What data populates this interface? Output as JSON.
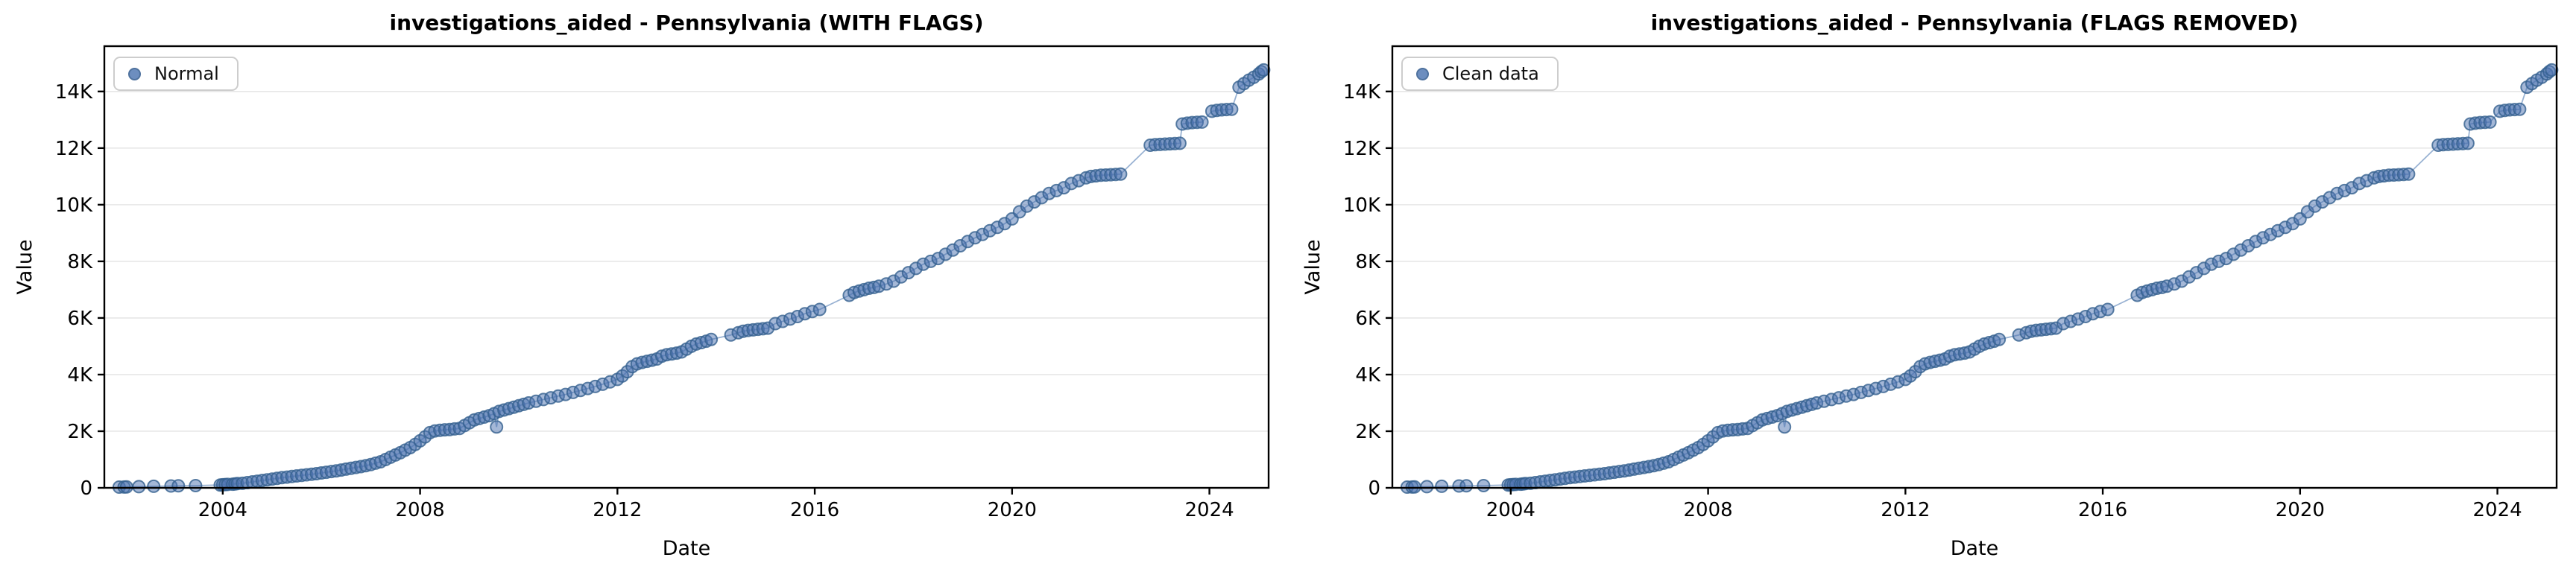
{
  "figure": {
    "background": "#ffffff"
  },
  "colors": {
    "marker_fill": "#4C72B0",
    "marker_edge": "#35608F",
    "connector_line": "#8FABCE",
    "grid": "#E7E7E7",
    "spine": "#000000",
    "text": "#000000"
  },
  "chart_data": [
    {
      "type": "scatter",
      "title": "investigations_aided - Pennsylvania (WITH FLAGS)",
      "xlabel": "Date",
      "ylabel": "Value",
      "legend": {
        "position": "upper left",
        "entries": [
          "Normal"
        ]
      },
      "xlim": [
        2001.6,
        2025.2
      ],
      "ylim": [
        0,
        15600
      ],
      "grid": "horizontal",
      "x_ticks": [
        {
          "v": 2004,
          "label": "2004"
        },
        {
          "v": 2008,
          "label": "2008"
        },
        {
          "v": 2012,
          "label": "2012"
        },
        {
          "v": 2016,
          "label": "2016"
        },
        {
          "v": 2020,
          "label": "2020"
        },
        {
          "v": 2024,
          "label": "2024"
        }
      ],
      "y_ticks": [
        {
          "v": 0,
          "label": "0"
        },
        {
          "v": 2000,
          "label": "2K"
        },
        {
          "v": 4000,
          "label": "4K"
        },
        {
          "v": 6000,
          "label": "6K"
        },
        {
          "v": 8000,
          "label": "8K"
        },
        {
          "v": 10000,
          "label": "10K"
        },
        {
          "v": 12000,
          "label": "12K"
        },
        {
          "v": 14000,
          "label": "14K"
        }
      ],
      "series": [
        {
          "name": "Normal",
          "points_key": "series_points"
        }
      ]
    },
    {
      "type": "scatter",
      "title": "investigations_aided - Pennsylvania (FLAGS REMOVED)",
      "xlabel": "Date",
      "ylabel": "Value",
      "legend": {
        "position": "upper left",
        "entries": [
          "Clean data"
        ]
      },
      "xlim": [
        2001.6,
        2025.2
      ],
      "ylim": [
        0,
        15600
      ],
      "grid": "horizontal",
      "x_ticks": [
        {
          "v": 2004,
          "label": "2004"
        },
        {
          "v": 2008,
          "label": "2008"
        },
        {
          "v": 2012,
          "label": "2012"
        },
        {
          "v": 2016,
          "label": "2016"
        },
        {
          "v": 2020,
          "label": "2020"
        },
        {
          "v": 2024,
          "label": "2024"
        }
      ],
      "y_ticks": [
        {
          "v": 0,
          "label": "0"
        },
        {
          "v": 2000,
          "label": "2K"
        },
        {
          "v": 4000,
          "label": "4K"
        },
        {
          "v": 6000,
          "label": "6K"
        },
        {
          "v": 8000,
          "label": "8K"
        },
        {
          "v": 10000,
          "label": "10K"
        },
        {
          "v": 12000,
          "label": "12K"
        },
        {
          "v": 14000,
          "label": "14K"
        }
      ],
      "series": [
        {
          "name": "Clean data",
          "points_key": "series_points"
        }
      ]
    }
  ],
  "series_points": [
    [
      2001.9,
      25
    ],
    [
      2002.0,
      30
    ],
    [
      2002.05,
      35
    ],
    [
      2002.3,
      42
    ],
    [
      2002.6,
      55
    ],
    [
      2002.95,
      65
    ],
    [
      2003.1,
      72
    ],
    [
      2003.45,
      80
    ],
    [
      2003.95,
      100
    ],
    [
      2004.0,
      108
    ],
    [
      2004.05,
      115
    ],
    [
      2004.1,
      122
    ],
    [
      2004.2,
      130
    ],
    [
      2004.25,
      140
    ],
    [
      2004.3,
      150
    ],
    [
      2004.4,
      160
    ],
    [
      2004.5,
      185
    ],
    [
      2004.6,
      210
    ],
    [
      2004.7,
      235
    ],
    [
      2004.8,
      260
    ],
    [
      2004.9,
      285
    ],
    [
      2005.0,
      310
    ],
    [
      2005.1,
      335
    ],
    [
      2005.2,
      360
    ],
    [
      2005.3,
      380
    ],
    [
      2005.4,
      400
    ],
    [
      2005.5,
      420
    ],
    [
      2005.6,
      440
    ],
    [
      2005.7,
      460
    ],
    [
      2005.8,
      480
    ],
    [
      2005.9,
      500
    ],
    [
      2006.0,
      525
    ],
    [
      2006.1,
      550
    ],
    [
      2006.2,
      575
    ],
    [
      2006.3,
      600
    ],
    [
      2006.4,
      630
    ],
    [
      2006.5,
      660
    ],
    [
      2006.6,
      690
    ],
    [
      2006.7,
      720
    ],
    [
      2006.8,
      750
    ],
    [
      2006.9,
      785
    ],
    [
      2007.0,
      820
    ],
    [
      2007.1,
      870
    ],
    [
      2007.2,
      920
    ],
    [
      2007.3,
      1000
    ],
    [
      2007.4,
      1080
    ],
    [
      2007.5,
      1160
    ],
    [
      2007.6,
      1240
    ],
    [
      2007.7,
      1330
    ],
    [
      2007.8,
      1420
    ],
    [
      2007.9,
      1530
    ],
    [
      2008.0,
      1660
    ],
    [
      2008.1,
      1800
    ],
    [
      2008.2,
      1950
    ],
    [
      2008.3,
      2010
    ],
    [
      2008.4,
      2030
    ],
    [
      2008.5,
      2050
    ],
    [
      2008.6,
      2060
    ],
    [
      2008.7,
      2080
    ],
    [
      2008.8,
      2100
    ],
    [
      2008.9,
      2200
    ],
    [
      2009.0,
      2300
    ],
    [
      2009.1,
      2400
    ],
    [
      2009.2,
      2450
    ],
    [
      2009.3,
      2500
    ],
    [
      2009.4,
      2550
    ],
    [
      2009.5,
      2620
    ],
    [
      2009.55,
      2150
    ],
    [
      2009.6,
      2700
    ],
    [
      2009.7,
      2750
    ],
    [
      2009.8,
      2800
    ],
    [
      2009.9,
      2850
    ],
    [
      2010.0,
      2900
    ],
    [
      2010.1,
      2950
    ],
    [
      2010.2,
      3000
    ],
    [
      2010.35,
      3060
    ],
    [
      2010.5,
      3120
    ],
    [
      2010.65,
      3180
    ],
    [
      2010.8,
      3240
    ],
    [
      2010.95,
      3300
    ],
    [
      2011.1,
      3370
    ],
    [
      2011.25,
      3440
    ],
    [
      2011.4,
      3510
    ],
    [
      2011.55,
      3580
    ],
    [
      2011.7,
      3660
    ],
    [
      2011.85,
      3740
    ],
    [
      2012.0,
      3830
    ],
    [
      2012.1,
      3950
    ],
    [
      2012.2,
      4100
    ],
    [
      2012.3,
      4280
    ],
    [
      2012.4,
      4380
    ],
    [
      2012.5,
      4430
    ],
    [
      2012.6,
      4470
    ],
    [
      2012.7,
      4510
    ],
    [
      2012.8,
      4550
    ],
    [
      2012.9,
      4650
    ],
    [
      2013.0,
      4700
    ],
    [
      2013.1,
      4730
    ],
    [
      2013.2,
      4760
    ],
    [
      2013.3,
      4800
    ],
    [
      2013.4,
      4900
    ],
    [
      2013.5,
      5000
    ],
    [
      2013.6,
      5080
    ],
    [
      2013.7,
      5130
    ],
    [
      2013.8,
      5180
    ],
    [
      2013.9,
      5240
    ],
    [
      2014.3,
      5400
    ],
    [
      2014.45,
      5480
    ],
    [
      2014.55,
      5530
    ],
    [
      2014.65,
      5560
    ],
    [
      2014.75,
      5580
    ],
    [
      2014.85,
      5600
    ],
    [
      2014.95,
      5620
    ],
    [
      2015.05,
      5640
    ],
    [
      2015.2,
      5800
    ],
    [
      2015.35,
      5880
    ],
    [
      2015.5,
      5960
    ],
    [
      2015.65,
      6050
    ],
    [
      2015.8,
      6150
    ],
    [
      2015.95,
      6230
    ],
    [
      2016.1,
      6300
    ],
    [
      2016.7,
      6800
    ],
    [
      2016.8,
      6900
    ],
    [
      2016.9,
      6950
    ],
    [
      2017.0,
      7000
    ],
    [
      2017.1,
      7050
    ],
    [
      2017.2,
      7080
    ],
    [
      2017.3,
      7120
    ],
    [
      2017.45,
      7200
    ],
    [
      2017.6,
      7300
    ],
    [
      2017.75,
      7450
    ],
    [
      2017.9,
      7600
    ],
    [
      2018.05,
      7750
    ],
    [
      2018.2,
      7900
    ],
    [
      2018.35,
      8000
    ],
    [
      2018.5,
      8100
    ],
    [
      2018.65,
      8250
    ],
    [
      2018.8,
      8400
    ],
    [
      2018.95,
      8550
    ],
    [
      2019.1,
      8700
    ],
    [
      2019.25,
      8830
    ],
    [
      2019.4,
      8950
    ],
    [
      2019.55,
      9080
    ],
    [
      2019.7,
      9200
    ],
    [
      2019.85,
      9330
    ],
    [
      2020.0,
      9500
    ],
    [
      2020.15,
      9750
    ],
    [
      2020.3,
      9950
    ],
    [
      2020.45,
      10100
    ],
    [
      2020.6,
      10250
    ],
    [
      2020.75,
      10400
    ],
    [
      2020.9,
      10500
    ],
    [
      2021.05,
      10600
    ],
    [
      2021.2,
      10750
    ],
    [
      2021.35,
      10850
    ],
    [
      2021.5,
      10950
    ],
    [
      2021.6,
      11000
    ],
    [
      2021.7,
      11020
    ],
    [
      2021.8,
      11040
    ],
    [
      2021.9,
      11050
    ],
    [
      2022.0,
      11060
    ],
    [
      2022.1,
      11070
    ],
    [
      2022.2,
      11080
    ],
    [
      2022.8,
      12100
    ],
    [
      2022.9,
      12120
    ],
    [
      2023.0,
      12130
    ],
    [
      2023.1,
      12140
    ],
    [
      2023.2,
      12150
    ],
    [
      2023.3,
      12160
    ],
    [
      2023.4,
      12170
    ],
    [
      2023.45,
      12850
    ],
    [
      2023.55,
      12880
    ],
    [
      2023.65,
      12900
    ],
    [
      2023.75,
      12910
    ],
    [
      2023.85,
      12920
    ],
    [
      2024.05,
      13300
    ],
    [
      2024.15,
      13330
    ],
    [
      2024.25,
      13350
    ],
    [
      2024.35,
      13360
    ],
    [
      2024.45,
      13370
    ],
    [
      2024.6,
      14150
    ],
    [
      2024.7,
      14280
    ],
    [
      2024.8,
      14400
    ],
    [
      2024.9,
      14500
    ],
    [
      2025.0,
      14620
    ],
    [
      2025.05,
      14700
    ],
    [
      2025.1,
      14760
    ]
  ]
}
